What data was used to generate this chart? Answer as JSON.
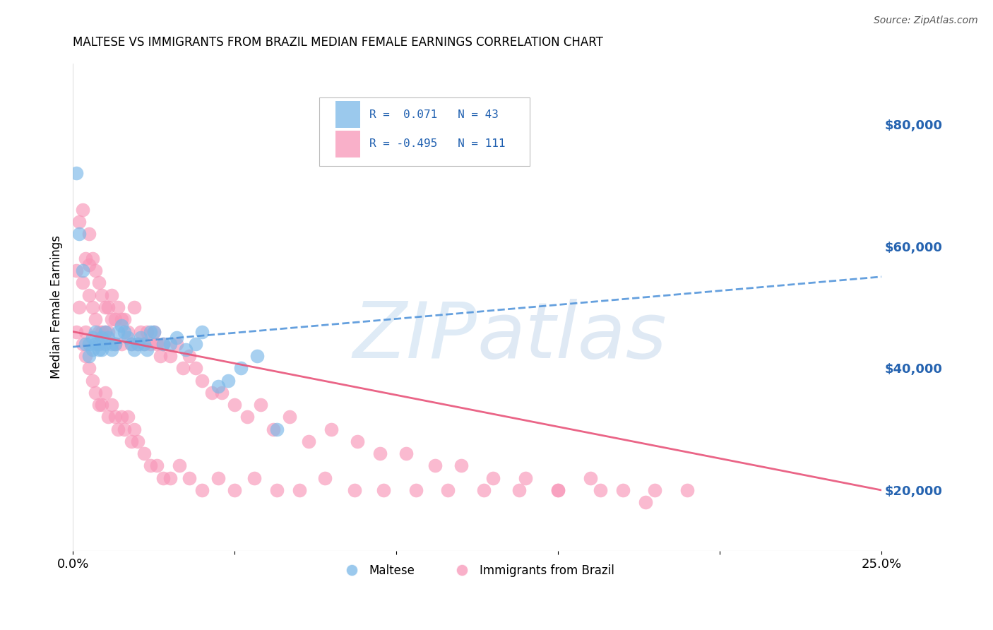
{
  "title": "MALTESE VS IMMIGRANTS FROM BRAZIL MEDIAN FEMALE EARNINGS CORRELATION CHART",
  "source": "Source: ZipAtlas.com",
  "ylabel": "Median Female Earnings",
  "right_yticks": [
    20000,
    40000,
    60000,
    80000
  ],
  "right_yticklabels": [
    "$20,000",
    "$40,000",
    "$60,000",
    "$80,000"
  ],
  "maltese_color": "#7ab8e8",
  "brazil_color": "#f896b8",
  "maltese_line_color": "#4a90d9",
  "brazil_line_color": "#e8547a",
  "background_color": "#ffffff",
  "grid_color": "#d0d0d0",
  "xlim": [
    0.0,
    0.25
  ],
  "ylim": [
    10000,
    90000
  ],
  "maltese_line": {
    "x0": 0.0,
    "x1": 0.25,
    "y0": 43500,
    "y1": 55000
  },
  "brazil_line": {
    "x0": 0.0,
    "x1": 0.25,
    "y0": 46000,
    "y1": 20000
  },
  "maltese_scatter_x": [
    0.001,
    0.002,
    0.003,
    0.004,
    0.005,
    0.005,
    0.006,
    0.006,
    0.007,
    0.007,
    0.008,
    0.008,
    0.009,
    0.009,
    0.01,
    0.01,
    0.011,
    0.012,
    0.012,
    0.013,
    0.014,
    0.015,
    0.016,
    0.017,
    0.018,
    0.019,
    0.02,
    0.021,
    0.022,
    0.023,
    0.024,
    0.025,
    0.028,
    0.03,
    0.032,
    0.035,
    0.038,
    0.04,
    0.045,
    0.048,
    0.052,
    0.057,
    0.063
  ],
  "maltese_scatter_y": [
    72000,
    62000,
    56000,
    44000,
    44000,
    42000,
    45000,
    43000,
    46000,
    44000,
    44000,
    43000,
    45000,
    43000,
    46000,
    44000,
    45000,
    44000,
    43000,
    44000,
    46000,
    47000,
    46000,
    45000,
    44000,
    43000,
    44000,
    45000,
    44000,
    43000,
    46000,
    46000,
    44000,
    44000,
    45000,
    43000,
    44000,
    46000,
    37000,
    38000,
    40000,
    42000,
    30000
  ],
  "brazil_scatter_x": [
    0.001,
    0.001,
    0.002,
    0.002,
    0.003,
    0.003,
    0.004,
    0.004,
    0.005,
    0.005,
    0.005,
    0.006,
    0.006,
    0.007,
    0.007,
    0.008,
    0.008,
    0.009,
    0.009,
    0.01,
    0.01,
    0.011,
    0.011,
    0.012,
    0.012,
    0.013,
    0.013,
    0.014,
    0.015,
    0.015,
    0.016,
    0.017,
    0.018,
    0.019,
    0.02,
    0.021,
    0.022,
    0.023,
    0.024,
    0.025,
    0.026,
    0.027,
    0.028,
    0.03,
    0.032,
    0.034,
    0.036,
    0.038,
    0.04,
    0.043,
    0.046,
    0.05,
    0.054,
    0.058,
    0.062,
    0.067,
    0.073,
    0.08,
    0.088,
    0.095,
    0.103,
    0.112,
    0.12,
    0.13,
    0.14,
    0.15,
    0.16,
    0.17,
    0.18,
    0.19,
    0.003,
    0.004,
    0.005,
    0.006,
    0.007,
    0.008,
    0.009,
    0.01,
    0.011,
    0.012,
    0.013,
    0.014,
    0.015,
    0.016,
    0.017,
    0.018,
    0.019,
    0.02,
    0.022,
    0.024,
    0.026,
    0.028,
    0.03,
    0.033,
    0.036,
    0.04,
    0.045,
    0.05,
    0.056,
    0.063,
    0.07,
    0.078,
    0.087,
    0.096,
    0.106,
    0.116,
    0.127,
    0.138,
    0.15,
    0.163,
    0.177
  ],
  "brazil_scatter_y": [
    56000,
    46000,
    64000,
    50000,
    66000,
    54000,
    58000,
    46000,
    62000,
    57000,
    52000,
    58000,
    50000,
    56000,
    48000,
    54000,
    46000,
    52000,
    46000,
    50000,
    46000,
    50000,
    46000,
    48000,
    52000,
    48000,
    44000,
    50000,
    48000,
    44000,
    48000,
    46000,
    44000,
    50000,
    44000,
    46000,
    44000,
    46000,
    44000,
    46000,
    44000,
    42000,
    44000,
    42000,
    44000,
    40000,
    42000,
    40000,
    38000,
    36000,
    36000,
    34000,
    32000,
    34000,
    30000,
    32000,
    28000,
    30000,
    28000,
    26000,
    26000,
    24000,
    24000,
    22000,
    22000,
    20000,
    22000,
    20000,
    20000,
    20000,
    44000,
    42000,
    40000,
    38000,
    36000,
    34000,
    34000,
    36000,
    32000,
    34000,
    32000,
    30000,
    32000,
    30000,
    32000,
    28000,
    30000,
    28000,
    26000,
    24000,
    24000,
    22000,
    22000,
    24000,
    22000,
    20000,
    22000,
    20000,
    22000,
    20000,
    20000,
    22000,
    20000,
    20000,
    20000,
    20000,
    20000,
    20000,
    20000,
    20000,
    18000
  ]
}
